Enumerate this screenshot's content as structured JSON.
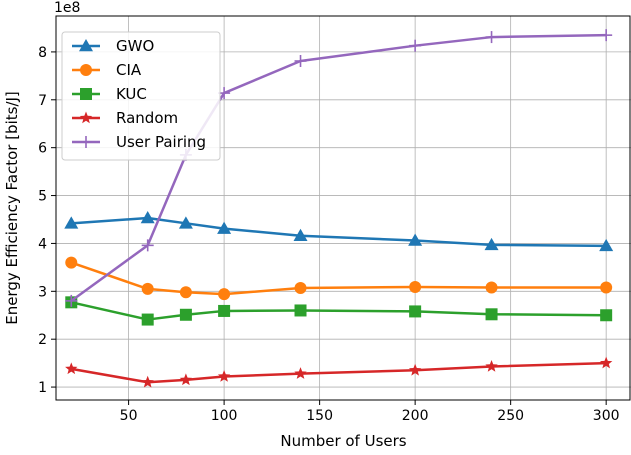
{
  "chart_data": {
    "type": "line",
    "title": "",
    "xlabel": "Number of Users",
    "ylabel": "Energy Efficiency Factor [bits/J]",
    "y_scale_label": "1e8",
    "xlim": [
      12,
      313
    ],
    "ylim": [
      0.73,
      8.75
    ],
    "x_ticks": [
      50,
      100,
      150,
      200,
      250,
      300
    ],
    "x_tick_labels": [
      "50",
      "100",
      "150",
      "200",
      "250",
      "300"
    ],
    "y_ticks": [
      1,
      2,
      3,
      4,
      5,
      6,
      7,
      8
    ],
    "y_tick_labels": [
      "1",
      "2",
      "3",
      "4",
      "5",
      "6",
      "7",
      "8"
    ],
    "grid": true,
    "legend_position": "top-left",
    "x": [
      20,
      60,
      80,
      100,
      140,
      200,
      240,
      300
    ],
    "series": [
      {
        "name": "GWO",
        "color": "#1f77b4",
        "marker": "triangle",
        "values": [
          4.42,
          4.53,
          4.42,
          4.31,
          4.16,
          4.06,
          3.97,
          3.95
        ]
      },
      {
        "name": "CIA",
        "color": "#ff7f0e",
        "marker": "circle",
        "values": [
          3.6,
          3.05,
          2.98,
          2.94,
          3.07,
          3.09,
          3.08,
          3.08
        ]
      },
      {
        "name": "KUC",
        "color": "#2ca02c",
        "marker": "square",
        "values": [
          2.77,
          2.41,
          2.51,
          2.59,
          2.6,
          2.58,
          2.52,
          2.5
        ]
      },
      {
        "name": "Random",
        "color": "#d62728",
        "marker": "star",
        "values": [
          1.38,
          1.1,
          1.15,
          1.22,
          1.28,
          1.35,
          1.43,
          1.5
        ]
      },
      {
        "name": "User Pairing",
        "color": "#9467bd",
        "marker": "plus",
        "values": [
          2.8,
          3.96,
          5.85,
          7.14,
          7.81,
          8.13,
          8.31,
          8.35
        ]
      }
    ]
  }
}
